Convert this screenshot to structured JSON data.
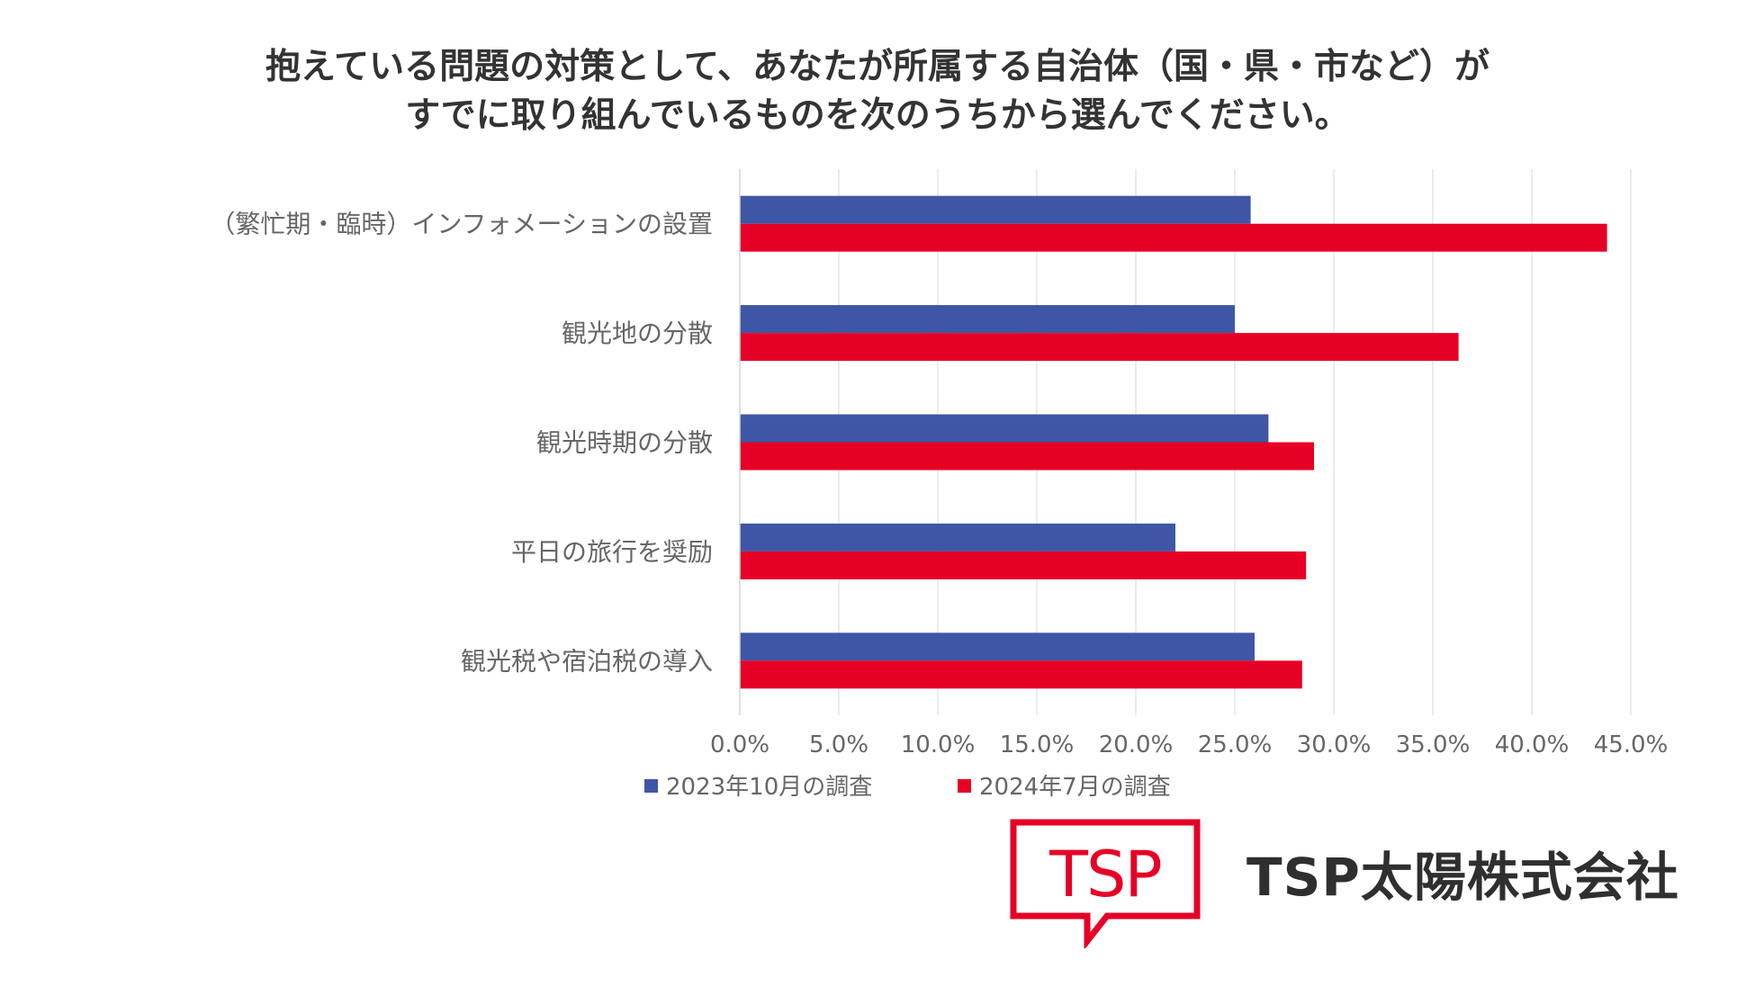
{
  "title_lines": [
    "抱えている問題の対策として、あなたが所属する自治体（国・県・市など）が",
    "すでに取り組んでいるものを次のうちから選んでください。"
  ],
  "chart_data": {
    "type": "bar",
    "orientation": "horizontal",
    "categories": [
      "（繁忙期・臨時）インフォメーションの設置",
      "観光地の分散",
      "観光時期の分散",
      "平日の旅行を奨励",
      "観光税や宿泊税の導入"
    ],
    "series": [
      {
        "name": "2023年10月の調査",
        "color": "#3f56a6",
        "values": [
          25.8,
          25.0,
          26.7,
          22.0,
          26.0
        ]
      },
      {
        "name": "2024年7月の調査",
        "color": "#e60026",
        "values": [
          43.8,
          36.3,
          29.0,
          28.6,
          28.4
        ]
      }
    ],
    "xlim": [
      0,
      45
    ],
    "x_ticks": [
      "0.0%",
      "5.0%",
      "10.0%",
      "15.0%",
      "20.0%",
      "25.0%",
      "30.0%",
      "35.0%",
      "40.0%",
      "45.0%"
    ],
    "grid": "vertical",
    "legend_position": "bottom"
  },
  "logo": {
    "text": "TSP",
    "color": "#e60026"
  },
  "company_name": "TSP太陽株式会社"
}
